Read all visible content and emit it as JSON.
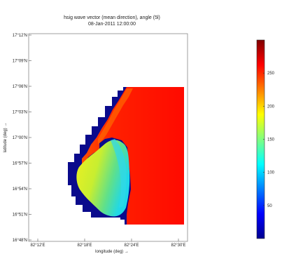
{
  "chart_data": {
    "type": "heatmap",
    "title": "hsig wave vector (mean direction), angle (5l)",
    "subtitle": "08-Jan-2011 12:00:00",
    "xlabel": "longitude (deg) →",
    "ylabel": "latitude (deg) →",
    "x_ticks": [
      "82°12'E",
      "82°18'E",
      "82°24'E",
      "82°30'E"
    ],
    "y_ticks": [
      "17°12'N",
      "17°09'N",
      "17°06'N",
      "17°03'N",
      "17°00'N",
      "16°57'N",
      "16°54'N",
      "16°51'N",
      "16°48'N"
    ],
    "colorbar": {
      "ticks": [
        50,
        100,
        150,
        200,
        250
      ],
      "range": [
        0,
        300
      ],
      "colormap": "jet"
    },
    "grid": false,
    "colors": {
      "land": "#0a0a8c",
      "deep_red": "#ff0d00",
      "coast_orange": "#ff5a00",
      "lagoon_yellow": "#f2f020",
      "lagoon_green": "#7fe070",
      "lagoon_cyan": "#30e0e0"
    }
  }
}
